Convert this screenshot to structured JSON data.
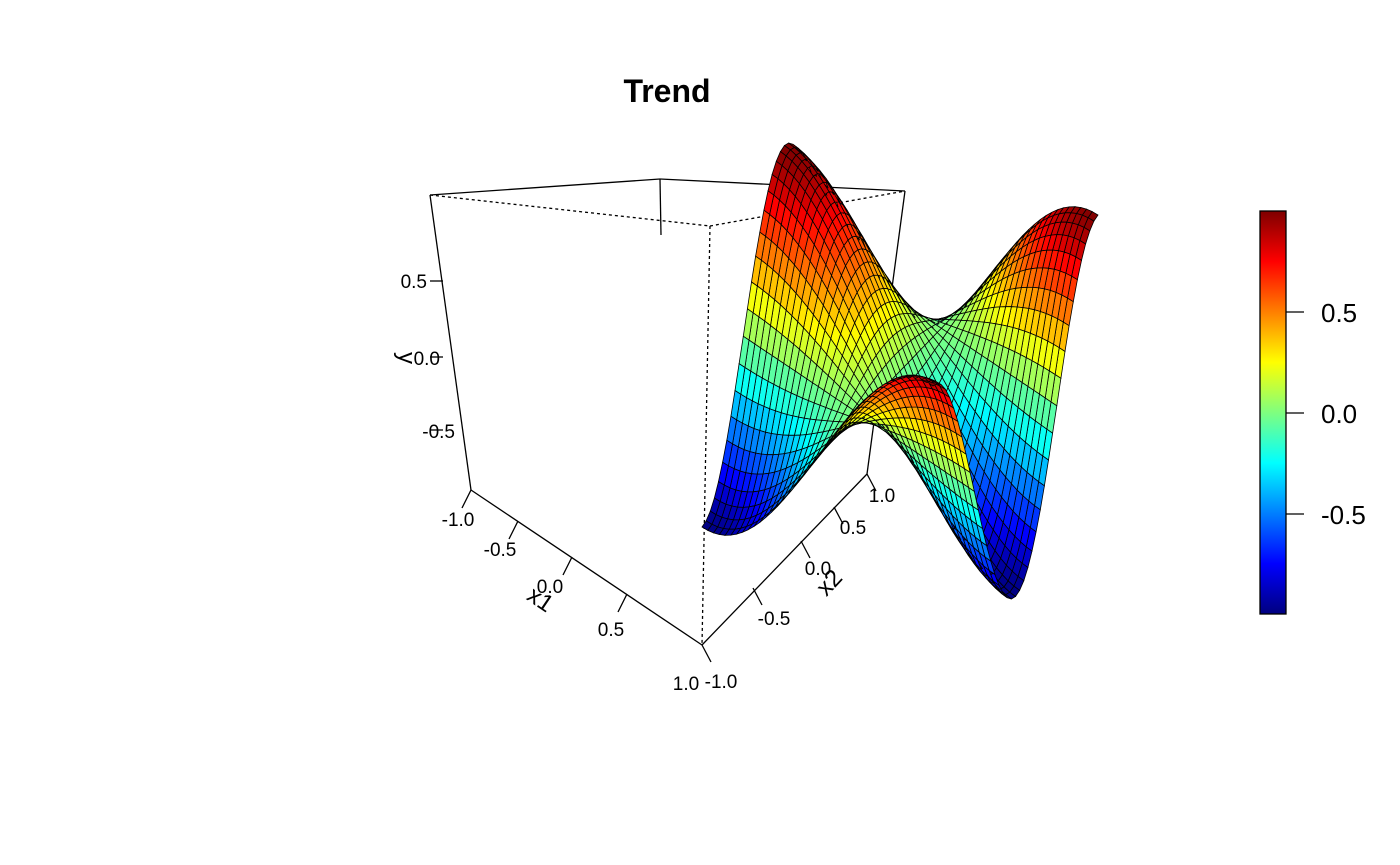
{
  "chart_data": {
    "type": "surface3d",
    "title": "Trend",
    "function": "f = sin(pi*x1/2) * cos(pi*x2)",
    "grid": {
      "x1": [
        -1.0,
        1.0
      ],
      "x2": [
        -1.0,
        1.0
      ],
      "n": 41
    },
    "zlim": [
      -1,
      1
    ],
    "axes": {
      "x1": {
        "label": "x1",
        "ticks": [
          "-1.0",
          "-0.5",
          "0.0",
          "0.5",
          "1.0"
        ]
      },
      "x2": {
        "label": "x2",
        "ticks": [
          "-1.0",
          "-0.5",
          "0.0",
          "0.5",
          "1.0"
        ]
      },
      "y": {
        "label": "y",
        "ticks": [
          "-0.5",
          "0.0",
          "0.5"
        ]
      }
    },
    "colorbar": {
      "ticks": [
        "-0.5",
        "0.0",
        "0.5"
      ],
      "range": [
        -1,
        1
      ],
      "palette": [
        "#00007F",
        "#0000FF",
        "#007FFF",
        "#00FFFF",
        "#7FFF7F",
        "#FFFF00",
        "#FF7F00",
        "#FF0000",
        "#7F0000"
      ]
    }
  }
}
